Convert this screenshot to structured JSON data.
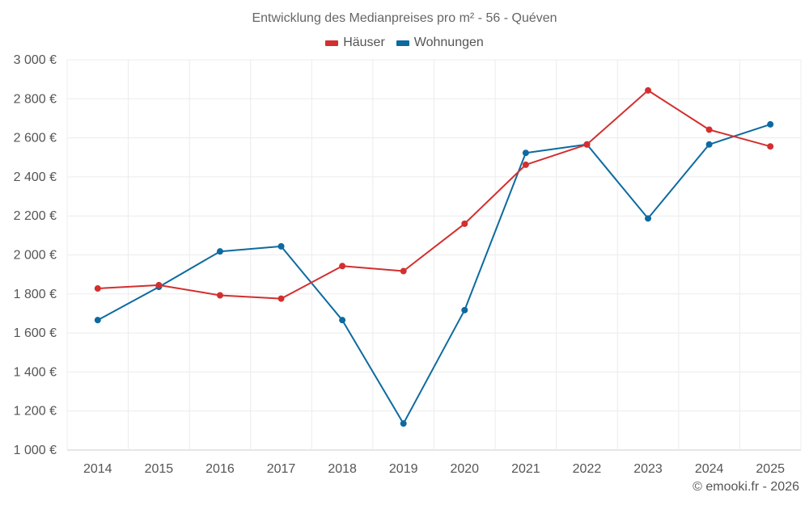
{
  "chart_data": {
    "type": "line",
    "title": "Entwicklung des Medianpreises pro m² - 56 - Quéven",
    "categories": [
      "2014",
      "2015",
      "2016",
      "2017",
      "2018",
      "2019",
      "2020",
      "2021",
      "2022",
      "2023",
      "2024",
      "2025"
    ],
    "series": [
      {
        "name": "Häuser",
        "color": "#d32f2f",
        "values": [
          1828,
          1845,
          1793,
          1776,
          1943,
          1917,
          2160,
          2462,
          2566,
          2843,
          2642,
          2556
        ]
      },
      {
        "name": "Wohnungen",
        "color": "#0d6aa0",
        "values": [
          1666,
          1836,
          2018,
          2044,
          1666,
          1136,
          1717,
          2523,
          2566,
          2187,
          2566,
          2669
        ]
      }
    ],
    "ylim": [
      1000,
      3000
    ],
    "yticks": [
      1000,
      1200,
      1400,
      1600,
      1800,
      2000,
      2200,
      2400,
      2600,
      2800,
      3000
    ],
    "ytick_labels": [
      "1 000 €",
      "1 200 €",
      "1 400 €",
      "1 600 €",
      "1 800 €",
      "2 000 €",
      "2 200 €",
      "2 400 €",
      "2 600 €",
      "2 800 €",
      "3 000 €"
    ],
    "xlabel": "",
    "ylabel": "",
    "grid": true,
    "legend": "top-center"
  },
  "legend": {
    "houses_label": "Häuser",
    "apartments_label": "Wohnungen"
  },
  "footer": {
    "copyright": "© emooki.fr - 2026"
  }
}
